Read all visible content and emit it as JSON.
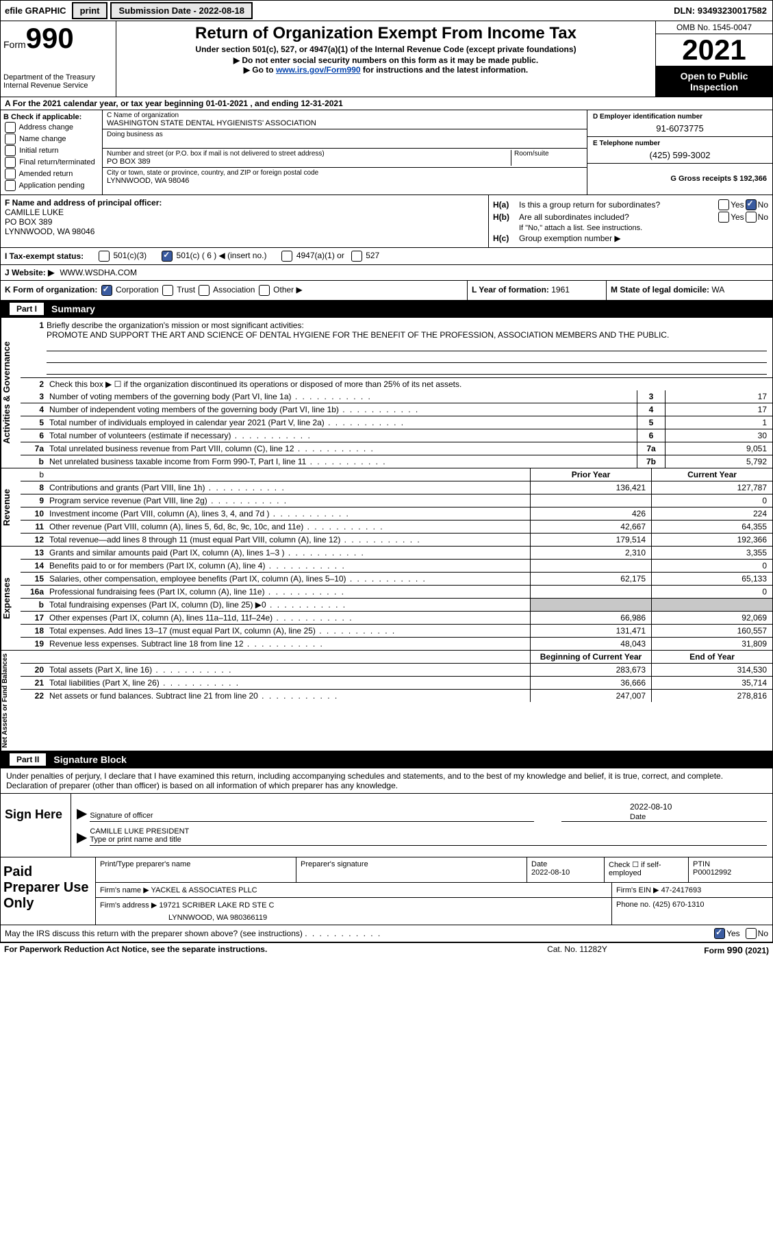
{
  "topbar": {
    "efile": "efile GRAPHIC",
    "print": "print",
    "submission_label": "Submission Date - ",
    "submission_date": "2022-08-18",
    "dln_label": "DLN: ",
    "dln": "93493230017582"
  },
  "header": {
    "form_label": "Form",
    "form_num": "990",
    "dept1": "Department of the Treasury",
    "dept2": "Internal Revenue Service",
    "title": "Return of Organization Exempt From Income Tax",
    "sub1": "Under section 501(c), 527, or 4947(a)(1) of the Internal Revenue Code (except private foundations)",
    "sub2": "▶ Do not enter social security numbers on this form as it may be made public.",
    "sub3_pre": "▶ Go to ",
    "sub3_link": "www.irs.gov/Form990",
    "sub3_post": " for instructions and the latest information.",
    "omb": "OMB No. 1545-0047",
    "year": "2021",
    "inspect": "Open to Public Inspection"
  },
  "row_a": "A For the 2021 calendar year, or tax year beginning 01-01-2021   , and ending 12-31-2021",
  "col_b": {
    "label": "B Check if applicable:",
    "opts": [
      "Address change",
      "Name change",
      "Initial return",
      "Final return/terminated",
      "Amended return",
      "Application pending"
    ]
  },
  "col_c": {
    "name_lbl": "C Name of organization",
    "name": "WASHINGTON STATE DENTAL HYGIENISTS' ASSOCIATION",
    "dba_lbl": "Doing business as",
    "addr_lbl": "Number and street (or P.O. box if mail is not delivered to street address)",
    "room_lbl": "Room/suite",
    "addr": "PO BOX 389",
    "city_lbl": "City or town, state or province, country, and ZIP or foreign postal code",
    "city": "LYNNWOOD, WA  98046"
  },
  "col_d": {
    "ein_lbl": "D Employer identification number",
    "ein": "91-6073775",
    "tel_lbl": "E Telephone number",
    "tel": "(425) 599-3002",
    "gross_lbl": "G Gross receipts $ ",
    "gross": "192,366"
  },
  "officer": {
    "lbl": "F Name and address of principal officer:",
    "name": "CAMILLE LUKE",
    "addr1": "PO BOX 389",
    "addr2": "LYNNWOOD, WA  98046"
  },
  "h": {
    "a_lbl": "H(a)",
    "a_text": "Is this a group return for subordinates?",
    "b_lbl": "H(b)",
    "b_text": "Are all subordinates included?",
    "note": "If \"No,\" attach a list. See instructions.",
    "c_lbl": "H(c)",
    "c_text": "Group exemption number ▶",
    "yes": "Yes",
    "no": "No"
  },
  "status": {
    "lbl": "I   Tax-exempt status:",
    "o1": "501(c)(3)",
    "o2": "501(c) ( 6 ) ◀ (insert no.)",
    "o3": "4947(a)(1) or",
    "o4": "527"
  },
  "website": {
    "lbl": "J   Website: ▶",
    "val": "WWW.WSDHA.COM"
  },
  "korg": {
    "k_lbl": "K Form of organization:",
    "corp": "Corporation",
    "trust": "Trust",
    "assoc": "Association",
    "other": "Other ▶",
    "l_lbl": "L Year of formation: ",
    "l_val": "1961",
    "m_lbl": "M State of legal domicile: ",
    "m_val": "WA"
  },
  "part1": {
    "num": "Part I",
    "title": "Summary"
  },
  "mission": {
    "num": "1",
    "lbl": "Briefly describe the organization's mission or most significant activities:",
    "text": "PROMOTE AND SUPPORT THE ART AND SCIENCE OF DENTAL HYGIENE FOR THE BENEFIT OF THE PROFESSION, ASSOCIATION MEMBERS AND THE PUBLIC."
  },
  "gov_lines": [
    {
      "n": "2",
      "t": "Check this box ▶ ☐ if the organization discontinued its operations or disposed of more than 25% of its net assets.",
      "box": "",
      "v": ""
    },
    {
      "n": "3",
      "t": "Number of voting members of the governing body (Part VI, line 1a)",
      "box": "3",
      "v": "17"
    },
    {
      "n": "4",
      "t": "Number of independent voting members of the governing body (Part VI, line 1b)",
      "box": "4",
      "v": "17"
    },
    {
      "n": "5",
      "t": "Total number of individuals employed in calendar year 2021 (Part V, line 2a)",
      "box": "5",
      "v": "1"
    },
    {
      "n": "6",
      "t": "Total number of volunteers (estimate if necessary)",
      "box": "6",
      "v": "30"
    },
    {
      "n": "7a",
      "t": "Total unrelated business revenue from Part VIII, column (C), line 12",
      "box": "7a",
      "v": "9,051"
    },
    {
      "n": "b",
      "t": "Net unrelated business taxable income from Form 990-T, Part I, line 11",
      "box": "7b",
      "v": "5,792"
    }
  ],
  "fin_hdr": {
    "prior": "Prior Year",
    "curr": "Current Year"
  },
  "revenue": [
    {
      "n": "8",
      "t": "Contributions and grants (Part VIII, line 1h)",
      "p": "136,421",
      "c": "127,787"
    },
    {
      "n": "9",
      "t": "Program service revenue (Part VIII, line 2g)",
      "p": "",
      "c": "0"
    },
    {
      "n": "10",
      "t": "Investment income (Part VIII, column (A), lines 3, 4, and 7d )",
      "p": "426",
      "c": "224"
    },
    {
      "n": "11",
      "t": "Other revenue (Part VIII, column (A), lines 5, 6d, 8c, 9c, 10c, and 11e)",
      "p": "42,667",
      "c": "64,355"
    },
    {
      "n": "12",
      "t": "Total revenue—add lines 8 through 11 (must equal Part VIII, column (A), line 12)",
      "p": "179,514",
      "c": "192,366"
    }
  ],
  "expenses": [
    {
      "n": "13",
      "t": "Grants and similar amounts paid (Part IX, column (A), lines 1–3 )",
      "p": "2,310",
      "c": "3,355"
    },
    {
      "n": "14",
      "t": "Benefits paid to or for members (Part IX, column (A), line 4)",
      "p": "",
      "c": "0"
    },
    {
      "n": "15",
      "t": "Salaries, other compensation, employee benefits (Part IX, column (A), lines 5–10)",
      "p": "62,175",
      "c": "65,133"
    },
    {
      "n": "16a",
      "t": "Professional fundraising fees (Part IX, column (A), line 11e)",
      "p": "",
      "c": "0"
    },
    {
      "n": "b",
      "t": "Total fundraising expenses (Part IX, column (D), line 25) ▶0",
      "p": "grey",
      "c": "grey"
    },
    {
      "n": "17",
      "t": "Other expenses (Part IX, column (A), lines 11a–11d, 11f–24e)",
      "p": "66,986",
      "c": "92,069"
    },
    {
      "n": "18",
      "t": "Total expenses. Add lines 13–17 (must equal Part IX, column (A), line 25)",
      "p": "131,471",
      "c": "160,557"
    },
    {
      "n": "19",
      "t": "Revenue less expenses. Subtract line 18 from line 12",
      "p": "48,043",
      "c": "31,809"
    }
  ],
  "net_hdr": {
    "prior": "Beginning of Current Year",
    "curr": "End of Year"
  },
  "netassets": [
    {
      "n": "20",
      "t": "Total assets (Part X, line 16)",
      "p": "283,673",
      "c": "314,530"
    },
    {
      "n": "21",
      "t": "Total liabilities (Part X, line 26)",
      "p": "36,666",
      "c": "35,714"
    },
    {
      "n": "22",
      "t": "Net assets or fund balances. Subtract line 21 from line 20",
      "p": "247,007",
      "c": "278,816"
    }
  ],
  "side_labels": {
    "gov": "Activities & Governance",
    "rev": "Revenue",
    "exp": "Expenses",
    "net": "Net Assets or Fund Balances"
  },
  "part2": {
    "num": "Part II",
    "title": "Signature Block"
  },
  "sig_text": "Under penalties of perjury, I declare that I have examined this return, including accompanying schedules and statements, and to the best of my knowledge and belief, it is true, correct, and complete. Declaration of preparer (other than officer) is based on all information of which preparer has any knowledge.",
  "sign": {
    "lbl": "Sign Here",
    "sig_lbl": "Signature of officer",
    "date": "2022-08-10",
    "date_lbl": "Date",
    "name": "CAMILLE LUKE  PRESIDENT",
    "name_lbl": "Type or print name and title"
  },
  "prep": {
    "lbl": "Paid Preparer Use Only",
    "r1": {
      "c1_lbl": "Print/Type preparer's name",
      "c2_lbl": "Preparer's signature",
      "c3_lbl": "Date",
      "c3_val": "2022-08-10",
      "c4_lbl": "Check ☐ if self-employed",
      "c5_lbl": "PTIN",
      "c5_val": "P00012992"
    },
    "r2": {
      "lbl": "Firm's name    ▶",
      "val": "YACKEL & ASSOCIATES PLLC",
      "ein_lbl": "Firm's EIN ▶",
      "ein": "47-2417693"
    },
    "r3": {
      "lbl": "Firm's address ▶",
      "val1": "19721 SCRIBER LAKE RD STE C",
      "val2": "LYNNWOOD, WA  980366119",
      "ph_lbl": "Phone no. ",
      "ph": "(425) 670-1310"
    }
  },
  "discuss": {
    "text": "May the IRS discuss this return with the preparer shown above? (see instructions)",
    "yes": "Yes",
    "no": "No"
  },
  "footer": {
    "left": "For Paperwork Reduction Act Notice, see the separate instructions.",
    "mid": "Cat. No. 11282Y",
    "right": "Form 990 (2021)"
  }
}
